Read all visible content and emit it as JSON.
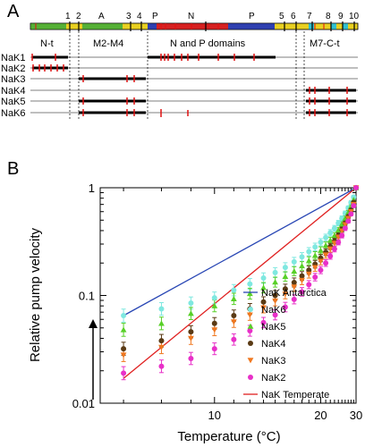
{
  "panelA": {
    "label": "A",
    "domain_numbers": [
      "1",
      "2",
      "3",
      "4",
      "5",
      "6",
      "7",
      "8",
      "9",
      "10"
    ],
    "domain_letters": [
      "A",
      "P",
      "N",
      "P"
    ],
    "region_labels": [
      "N-t",
      "M2-M4",
      "N and P domains",
      "M7-C-t"
    ],
    "rows": [
      "NaK1",
      "NaK2",
      "NaK3",
      "NaK4",
      "NaK5",
      "NaK6"
    ],
    "colors": {
      "A": "#55b035",
      "N": "#d62020",
      "P": "#2e3fb0",
      "M": "#e8d020",
      "cyan": "#30c0d0",
      "mark": "#e01010"
    }
  },
  "panelB": {
    "label": "B"
  },
  "chart_data": {
    "type": "scatter",
    "title": "",
    "xlabel": "Temperature (°C)",
    "ylabel": "Relative pump velocity",
    "xscale": "reciprocal",
    "yscale": "log",
    "xlim": [
      6.5,
      30
    ],
    "ylim": [
      0.01,
      1
    ],
    "xticks": [
      10,
      20,
      30
    ],
    "yticks": [
      0.01,
      0.1,
      1
    ],
    "ytick_labels": [
      "0.01",
      "0.1",
      "1"
    ],
    "legend_position": "right",
    "x": [
      7,
      8,
      9,
      10,
      11,
      12,
      13,
      14,
      15,
      16,
      17,
      18,
      19,
      20,
      21,
      22,
      23,
      24,
      25,
      26,
      27,
      28,
      29,
      30
    ],
    "series": [
      {
        "name": "NaK Antarctica",
        "kind": "line",
        "color": "#2846b4",
        "x": [
          7,
          30
        ],
        "y": [
          0.065,
          1.0
        ]
      },
      {
        "name": "NaK6",
        "kind": "points",
        "color": "#7fe8e0",
        "marker": "circle",
        "values": [
          0.065,
          0.075,
          0.085,
          0.095,
          0.112,
          0.128,
          0.145,
          0.163,
          0.182,
          0.205,
          0.228,
          0.255,
          0.282,
          0.312,
          0.345,
          0.382,
          0.42,
          0.47,
          0.52,
          0.58,
          0.65,
          0.73,
          0.82,
          1.0
        ]
      },
      {
        "name": "NaK5",
        "kind": "points",
        "color": "#58d028",
        "marker": "triangle",
        "values": [
          0.048,
          0.055,
          0.068,
          0.08,
          0.093,
          0.104,
          0.118,
          0.133,
          0.15,
          0.168,
          0.188,
          0.21,
          0.235,
          0.262,
          0.292,
          0.325,
          0.36,
          0.405,
          0.46,
          0.52,
          0.59,
          0.67,
          0.77,
          1.0
        ]
      },
      {
        "name": "NaK4",
        "kind": "points",
        "color": "#5a3a14",
        "marker": "circle",
        "values": [
          0.032,
          0.038,
          0.046,
          0.055,
          0.065,
          0.075,
          0.087,
          0.1,
          0.115,
          0.132,
          0.152,
          0.172,
          0.195,
          0.222,
          0.252,
          0.285,
          0.32,
          0.362,
          0.41,
          0.47,
          0.54,
          0.62,
          0.73,
          1.0
        ]
      },
      {
        "name": "NaK3",
        "kind": "points",
        "color": "#f07820",
        "marker": "triangle-down",
        "values": [
          0.028,
          0.033,
          0.04,
          0.048,
          0.057,
          0.066,
          0.077,
          0.089,
          0.103,
          0.12,
          0.138,
          0.158,
          0.182,
          0.208,
          0.238,
          0.27,
          0.306,
          0.348,
          0.398,
          0.455,
          0.52,
          0.6,
          0.7,
          1.0
        ]
      },
      {
        "name": "NaK2",
        "kind": "points",
        "color": "#e830c8",
        "marker": "circle",
        "values": [
          0.019,
          0.022,
          0.026,
          0.032,
          0.039,
          0.047,
          0.056,
          0.066,
          0.078,
          0.092,
          0.108,
          0.126,
          0.148,
          0.172,
          0.2,
          0.232,
          0.27,
          0.312,
          0.36,
          0.42,
          0.49,
          0.57,
          0.68,
          1.0
        ]
      },
      {
        "name": "NaK Temperate",
        "kind": "line",
        "color": "#e02020",
        "x": [
          7,
          30
        ],
        "y": [
          0.017,
          1.0
        ]
      }
    ]
  }
}
